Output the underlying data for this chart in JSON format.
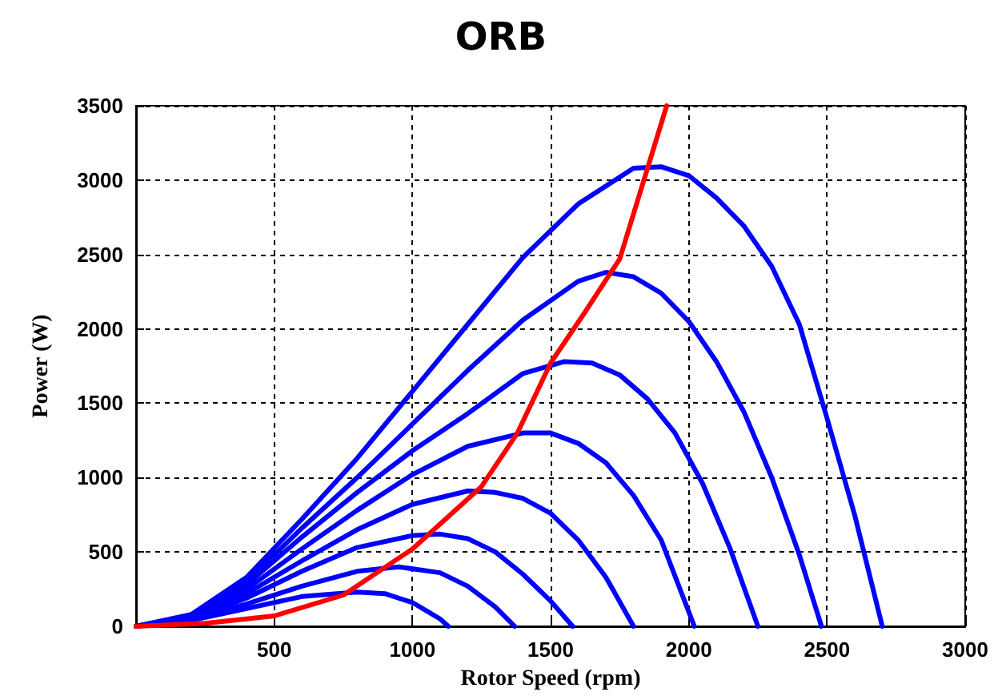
{
  "chart_data": {
    "type": "line",
    "title": "ORB",
    "xlabel": "Rotor Speed (rpm)",
    "ylabel": "Power (W)",
    "xlim": [
      0,
      3000
    ],
    "xticks": [
      {
        "value": 0,
        "label": null
      },
      500,
      1000,
      1500,
      2000,
      2500,
      3000
    ],
    "ylim": [
      0,
      3500
    ],
    "yticks": [
      0,
      500,
      1000,
      1500,
      2000,
      2500,
      3000,
      3500
    ],
    "grid": true,
    "marker": "none",
    "line_style": "solid",
    "series": [
      {
        "color": "#0000ff",
        "x": [
          0,
          200,
          400,
          600,
          800,
          900,
          1000,
          1100,
          1130
        ],
        "values": [
          0,
          40,
          120,
          200,
          230,
          220,
          160,
          50,
          0
        ]
      },
      {
        "color": "#0000ff",
        "x": [
          0,
          200,
          400,
          600,
          800,
          950,
          1100,
          1200,
          1300,
          1370
        ],
        "values": [
          0,
          50,
          150,
          270,
          370,
          400,
          360,
          270,
          130,
          0
        ]
      },
      {
        "color": "#0000ff",
        "x": [
          0,
          200,
          400,
          600,
          800,
          1000,
          1100,
          1200,
          1300,
          1400,
          1500,
          1580
        ],
        "values": [
          0,
          50,
          190,
          370,
          530,
          610,
          620,
          590,
          500,
          350,
          170,
          0
        ]
      },
      {
        "color": "#0000ff",
        "x": [
          0,
          200,
          400,
          600,
          800,
          1000,
          1200,
          1300,
          1400,
          1500,
          1600,
          1700,
          1800
        ],
        "values": [
          0,
          60,
          220,
          440,
          650,
          820,
          910,
          900,
          860,
          760,
          580,
          330,
          0
        ]
      },
      {
        "color": "#0000ff",
        "x": [
          0,
          200,
          400,
          600,
          800,
          1000,
          1200,
          1400,
          1500,
          1600,
          1700,
          1800,
          1900,
          2020
        ],
        "values": [
          0,
          60,
          250,
          520,
          780,
          1020,
          1210,
          1300,
          1300,
          1230,
          1100,
          880,
          580,
          0
        ]
      },
      {
        "color": "#0000ff",
        "x": [
          0,
          200,
          400,
          600,
          800,
          1000,
          1200,
          1400,
          1550,
          1650,
          1750,
          1850,
          1950,
          2050,
          2150,
          2250
        ],
        "values": [
          0,
          70,
          280,
          600,
          900,
          1180,
          1430,
          1700,
          1780,
          1770,
          1690,
          1530,
          1300,
          960,
          520,
          0
        ]
      },
      {
        "color": "#0000ff",
        "x": [
          0,
          200,
          400,
          600,
          800,
          1000,
          1200,
          1400,
          1600,
          1700,
          1800,
          1900,
          2000,
          2100,
          2200,
          2300,
          2400,
          2480
        ],
        "values": [
          0,
          70,
          300,
          660,
          1000,
          1360,
          1720,
          2060,
          2320,
          2380,
          2350,
          2240,
          2050,
          1780,
          1440,
          1000,
          480,
          0
        ]
      },
      {
        "color": "#0000ff",
        "x": [
          0,
          200,
          400,
          600,
          800,
          1000,
          1200,
          1400,
          1600,
          1800,
          1900,
          2000,
          2100,
          2200,
          2300,
          2400,
          2500,
          2600,
          2700
        ],
        "values": [
          0,
          80,
          330,
          720,
          1130,
          1580,
          2030,
          2480,
          2840,
          3080,
          3090,
          3030,
          2880,
          2690,
          2420,
          2030,
          1400,
          750,
          0
        ]
      },
      {
        "color": "#ff0000",
        "x": [
          0,
          250,
          500,
          750,
          1000,
          1250,
          1380,
          1500,
          1620,
          1750,
          1920
        ],
        "values": [
          0,
          20,
          70,
          210,
          520,
          940,
          1300,
          1770,
          2100,
          2470,
          3500
        ]
      }
    ]
  }
}
